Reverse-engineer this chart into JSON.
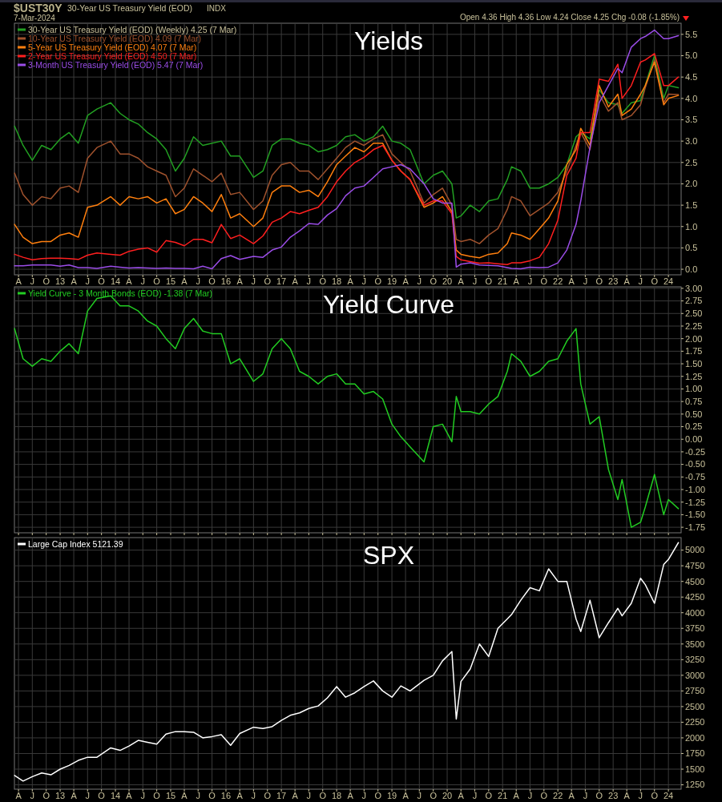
{
  "chart_data": [
    {
      "type": "line",
      "title": "Yields",
      "legend": "top left",
      "grid": true,
      "annotations": [
        "$UST30Y",
        "30-Year US Treasury Yield (EOD)",
        "INDX",
        "7-Mar-2024",
        "Open 4.36  High 4.36  Low 4.24  Close 4.25  Chg -0.08 (-1.85%)"
      ],
      "x": [
        "2012-03-06",
        "2012-05",
        "2012-07",
        "2012-09",
        "2012-11",
        "2013-01",
        "2013-03",
        "2013-05",
        "2013-07",
        "2013-09",
        "2013-12",
        "2014-02",
        "2014-04",
        "2014-06",
        "2014-08",
        "2014-10",
        "2014-12",
        "2015-02",
        "2015-04",
        "2015-06",
        "2015-08",
        "2015-10",
        "2015-12",
        "2016-02",
        "2016-04",
        "2016-07",
        "2016-09",
        "2016-11",
        "2017-01",
        "2017-03",
        "2017-05",
        "2017-07",
        "2017-09",
        "2017-11",
        "2018-01",
        "2018-03",
        "2018-05",
        "2018-07",
        "2018-09",
        "2018-11",
        "2019-01",
        "2019-03",
        "2019-05",
        "2019-08",
        "2019-10",
        "2019-12",
        "2020-02",
        "2020-03",
        "2020-04",
        "2020-06",
        "2020-08",
        "2020-10",
        "2020-12",
        "2021-02",
        "2021-03",
        "2021-05",
        "2021-07",
        "2021-09",
        "2021-11",
        "2022-01",
        "2022-03",
        "2022-05",
        "2022-06",
        "2022-08",
        "2022-10",
        "2022-12",
        "2023-02",
        "2023-03",
        "2023-05",
        "2023-07",
        "2023-08",
        "2023-10",
        "2023-12",
        "2024-01",
        "2024-03-07"
      ],
      "xlim": [
        "2012-03-05",
        "2024-03-25"
      ],
      "xticks": [
        {
          "value": "2012-04",
          "label": "A"
        },
        {
          "value": "2012-07",
          "label": "J"
        },
        {
          "value": "2012-10",
          "label": "O"
        },
        {
          "value": "2013-01",
          "label": "13"
        },
        {
          "value": "2013-04",
          "label": "A"
        },
        {
          "value": "2013-07",
          "label": "J"
        },
        {
          "value": "2013-10",
          "label": "O"
        },
        {
          "value": "2014-01",
          "label": "14"
        },
        {
          "value": "2014-04",
          "label": "A"
        },
        {
          "value": "2014-07",
          "label": "J"
        },
        {
          "value": "2014-10",
          "label": "O"
        },
        {
          "value": "2015-01",
          "label": "15"
        },
        {
          "value": "2015-04",
          "label": "A"
        },
        {
          "value": "2015-07",
          "label": "J"
        },
        {
          "value": "2015-10",
          "label": "O"
        },
        {
          "value": "2016-01",
          "label": "16"
        },
        {
          "value": "2016-04",
          "label": "A"
        },
        {
          "value": "2016-07",
          "label": "J"
        },
        {
          "value": "2016-10",
          "label": "O"
        },
        {
          "value": "2017-01",
          "label": "17"
        },
        {
          "value": "2017-04",
          "label": "A"
        },
        {
          "value": "2017-07",
          "label": "J"
        },
        {
          "value": "2017-10",
          "label": "O"
        },
        {
          "value": "2018-01",
          "label": "18"
        },
        {
          "value": "2018-04",
          "label": "A"
        },
        {
          "value": "2018-07",
          "label": "J"
        },
        {
          "value": "2018-10",
          "label": "O"
        },
        {
          "value": "2019-01",
          "label": "19"
        },
        {
          "value": "2019-04",
          "label": "A"
        },
        {
          "value": "2019-07",
          "label": "J"
        },
        {
          "value": "2019-10",
          "label": "O"
        },
        {
          "value": "2020-01",
          "label": "20"
        },
        {
          "value": "2020-04",
          "label": "A"
        },
        {
          "value": "2020-07",
          "label": "J"
        },
        {
          "value": "2020-10",
          "label": "O"
        },
        {
          "value": "2021-01",
          "label": "21"
        },
        {
          "value": "2021-04",
          "label": "A"
        },
        {
          "value": "2021-07",
          "label": "J"
        },
        {
          "value": "2021-10",
          "label": "O"
        },
        {
          "value": "2022-01",
          "label": "22"
        },
        {
          "value": "2022-04",
          "label": "A"
        },
        {
          "value": "2022-07",
          "label": "J"
        },
        {
          "value": "2022-10",
          "label": "O"
        },
        {
          "value": "2023-01",
          "label": "23"
        },
        {
          "value": "2023-04",
          "label": "A"
        },
        {
          "value": "2023-07",
          "label": "J"
        },
        {
          "value": "2023-10",
          "label": "O"
        },
        {
          "value": "2024-01",
          "label": "24"
        }
      ],
      "ylim": [
        -0.13,
        5.76
      ],
      "yticks": [
        {
          "value": 0,
          "label": "0.0"
        },
        0.5,
        {
          "value": 1,
          "label": "1.0"
        },
        1.5,
        {
          "value": 2,
          "label": "2.0"
        },
        2.5,
        {
          "value": 3,
          "label": "3.0"
        },
        3.5,
        {
          "value": 4,
          "label": "4.0"
        },
        4.5,
        {
          "value": 5,
          "label": "5.0"
        },
        5.5
      ],
      "series": [
        {
          "name": "30-Year US Treasury Yield (EOD) (Weekly) 4.25 (7 Mar)",
          "color": "#22a022",
          "values": [
            3.35,
            2.9,
            2.55,
            2.9,
            2.8,
            3.05,
            3.2,
            2.95,
            3.6,
            3.75,
            3.9,
            3.65,
            3.5,
            3.4,
            3.2,
            3.05,
            2.8,
            2.3,
            2.6,
            3.1,
            2.9,
            2.95,
            3.0,
            2.65,
            2.65,
            2.15,
            2.3,
            2.9,
            3.05,
            3.05,
            2.95,
            2.9,
            2.75,
            2.8,
            2.9,
            3.1,
            3.15,
            3.0,
            3.1,
            3.35,
            3.0,
            2.95,
            2.8,
            2.0,
            2.2,
            2.3,
            2.0,
            1.2,
            1.25,
            1.5,
            1.35,
            1.6,
            1.65,
            2.1,
            2.4,
            2.3,
            1.9,
            1.9,
            2.0,
            2.15,
            2.45,
            3.1,
            3.2,
            3.05,
            4.2,
            3.9,
            3.85,
            3.65,
            3.9,
            3.95,
            4.3,
            5.0,
            4.0,
            4.3,
            4.25
          ]
        },
        {
          "name": "10-Year US Treasury Yield (EOD) 4.09 (7 Mar)",
          "color": "#a0522d",
          "values": [
            2.25,
            1.75,
            1.5,
            1.7,
            1.65,
            1.9,
            1.95,
            1.8,
            2.6,
            2.85,
            3.0,
            2.7,
            2.7,
            2.6,
            2.4,
            2.3,
            2.2,
            1.7,
            1.9,
            2.35,
            2.2,
            2.05,
            2.25,
            1.75,
            1.8,
            1.4,
            1.6,
            2.2,
            2.45,
            2.5,
            2.3,
            2.3,
            2.1,
            2.35,
            2.6,
            2.85,
            3.0,
            2.9,
            3.05,
            3.15,
            2.7,
            2.5,
            2.3,
            1.55,
            1.75,
            1.9,
            1.5,
            0.7,
            0.65,
            0.7,
            0.6,
            0.8,
            0.95,
            1.4,
            1.7,
            1.6,
            1.25,
            1.4,
            1.55,
            1.8,
            2.3,
            2.9,
            3.2,
            2.8,
            4.1,
            3.7,
            3.9,
            3.5,
            3.6,
            3.85,
            4.25,
            4.9,
            3.9,
            4.1,
            4.09
          ]
        },
        {
          "name": "5-Year US Treasury Yield (EOD) 4.07 (7 Mar)",
          "color": "#ff7f0e",
          "values": [
            1.05,
            0.75,
            0.6,
            0.65,
            0.65,
            0.8,
            0.85,
            0.75,
            1.45,
            1.5,
            1.7,
            1.5,
            1.7,
            1.65,
            1.7,
            1.55,
            1.65,
            1.3,
            1.4,
            1.7,
            1.55,
            1.35,
            1.75,
            1.2,
            1.3,
            1.0,
            1.2,
            1.8,
            1.95,
            1.95,
            1.8,
            1.85,
            1.7,
            2.05,
            2.45,
            2.65,
            2.85,
            2.75,
            2.95,
            2.95,
            2.55,
            2.3,
            2.1,
            1.45,
            1.55,
            1.7,
            1.35,
            0.45,
            0.35,
            0.3,
            0.27,
            0.35,
            0.38,
            0.6,
            0.85,
            0.8,
            0.7,
            0.95,
            1.2,
            1.6,
            2.45,
            2.8,
            3.3,
            2.9,
            4.3,
            3.8,
            4.1,
            3.6,
            3.75,
            4.1,
            4.3,
            4.85,
            3.85,
            4.0,
            4.07
          ]
        },
        {
          "name": "2-Year US Treasury Yield (EOD) 4.50 (7 Mar)",
          "color": "#ff1f1f",
          "values": [
            0.35,
            0.28,
            0.22,
            0.25,
            0.26,
            0.26,
            0.25,
            0.23,
            0.33,
            0.38,
            0.35,
            0.33,
            0.42,
            0.47,
            0.5,
            0.4,
            0.67,
            0.63,
            0.55,
            0.7,
            0.7,
            0.62,
            1.05,
            0.72,
            0.8,
            0.6,
            0.78,
            1.1,
            1.2,
            1.35,
            1.3,
            1.38,
            1.45,
            1.7,
            2.05,
            2.3,
            2.5,
            2.62,
            2.8,
            2.9,
            2.55,
            2.3,
            2.1,
            1.5,
            1.6,
            1.6,
            1.3,
            0.3,
            0.22,
            0.18,
            0.14,
            0.15,
            0.13,
            0.11,
            0.15,
            0.15,
            0.2,
            0.28,
            0.6,
            1.15,
            2.2,
            2.6,
            3.2,
            3.2,
            4.45,
            4.4,
            4.8,
            4.0,
            4.3,
            4.85,
            4.9,
            5.05,
            4.3,
            4.3,
            4.5
          ]
        },
        {
          "name": "3-Month US Treasury Yield (EOD) 5.47 (7 Mar)",
          "color": "#9b4de8",
          "values": [
            0.08,
            0.08,
            0.1,
            0.1,
            0.1,
            0.07,
            0.1,
            0.04,
            0.04,
            0.02,
            0.07,
            0.05,
            0.03,
            0.04,
            0.03,
            0.02,
            0.03,
            0.02,
            0.02,
            0.01,
            0.07,
            0.01,
            0.25,
            0.32,
            0.23,
            0.3,
            0.28,
            0.45,
            0.52,
            0.75,
            0.9,
            1.07,
            1.05,
            1.27,
            1.42,
            1.72,
            1.9,
            1.95,
            2.15,
            2.35,
            2.4,
            2.45,
            2.35,
            2.0,
            1.65,
            1.55,
            1.55,
            0.05,
            0.12,
            0.15,
            0.1,
            0.09,
            0.08,
            0.04,
            0.02,
            0.01,
            0.05,
            0.04,
            0.05,
            0.15,
            0.45,
            1.05,
            1.6,
            2.85,
            3.9,
            4.3,
            4.7,
            4.6,
            5.2,
            5.4,
            5.45,
            5.6,
            5.4,
            5.4,
            5.47
          ]
        }
      ]
    },
    {
      "type": "line",
      "title": "Yield Curve",
      "legend": "top left",
      "grid": true,
      "tick_labels": "y",
      "x": [
        "2012-03-06",
        "2012-05",
        "2012-07",
        "2012-09",
        "2012-11",
        "2013-01",
        "2013-03",
        "2013-05",
        "2013-07",
        "2013-09",
        "2013-12",
        "2014-02",
        "2014-04",
        "2014-06",
        "2014-08",
        "2014-10",
        "2014-12",
        "2015-02",
        "2015-04",
        "2015-06",
        "2015-08",
        "2015-10",
        "2015-12",
        "2016-02",
        "2016-04",
        "2016-07",
        "2016-09",
        "2016-11",
        "2017-01",
        "2017-03",
        "2017-05",
        "2017-07",
        "2017-09",
        "2017-11",
        "2018-01",
        "2018-03",
        "2018-05",
        "2018-07",
        "2018-09",
        "2018-11",
        "2019-01",
        "2019-03",
        "2019-05",
        "2019-08",
        "2019-10",
        "2019-12",
        "2020-02",
        "2020-03",
        "2020-04",
        "2020-06",
        "2020-08",
        "2020-10",
        "2020-12",
        "2021-02",
        "2021-03",
        "2021-05",
        "2021-07",
        "2021-09",
        "2021-11",
        "2022-01",
        "2022-03",
        "2022-05",
        "2022-06",
        "2022-08",
        "2022-10",
        "2022-12",
        "2023-02",
        "2023-03",
        "2023-05",
        "2023-07",
        "2023-08",
        "2023-10",
        "2023-12",
        "2024-01",
        "2024-03-07"
      ],
      "xlim": [
        "2012-03-05",
        "2024-03-25"
      ],
      "xticks": [
        {
          "value": "2012-04",
          "label": null
        },
        {
          "value": "2012-07",
          "label": null
        },
        {
          "value": "2012-10",
          "label": null
        },
        {
          "value": "2013-01",
          "label": null
        },
        {
          "value": "2013-04",
          "label": null
        },
        {
          "value": "2013-07",
          "label": null
        },
        {
          "value": "2013-10",
          "label": null
        },
        {
          "value": "2014-01",
          "label": null
        },
        {
          "value": "2014-04",
          "label": null
        },
        {
          "value": "2014-07",
          "label": null
        },
        {
          "value": "2014-10",
          "label": null
        },
        {
          "value": "2015-01",
          "label": null
        },
        {
          "value": "2015-04",
          "label": null
        },
        {
          "value": "2015-07",
          "label": null
        },
        {
          "value": "2015-10",
          "label": null
        },
        {
          "value": "2016-01",
          "label": null
        },
        {
          "value": "2016-04",
          "label": null
        },
        {
          "value": "2016-07",
          "label": null
        },
        {
          "value": "2016-10",
          "label": null
        },
        {
          "value": "2017-01",
          "label": null
        },
        {
          "value": "2017-04",
          "label": null
        },
        {
          "value": "2017-07",
          "label": null
        },
        {
          "value": "2017-10",
          "label": null
        },
        {
          "value": "2018-01",
          "label": null
        },
        {
          "value": "2018-04",
          "label": null
        },
        {
          "value": "2018-07",
          "label": null
        },
        {
          "value": "2018-10",
          "label": null
        },
        {
          "value": "2019-01",
          "label": null
        },
        {
          "value": "2019-04",
          "label": null
        },
        {
          "value": "2019-07",
          "label": null
        },
        {
          "value": "2019-10",
          "label": null
        },
        {
          "value": "2020-01",
          "label": null
        },
        {
          "value": "2020-04",
          "label": null
        },
        {
          "value": "2020-07",
          "label": null
        },
        {
          "value": "2020-10",
          "label": null
        },
        {
          "value": "2021-01",
          "label": null
        },
        {
          "value": "2021-04",
          "label": null
        },
        {
          "value": "2021-07",
          "label": null
        },
        {
          "value": "2021-10",
          "label": null
        },
        {
          "value": "2022-01",
          "label": null
        },
        {
          "value": "2022-04",
          "label": null
        },
        {
          "value": "2022-07",
          "label": null
        },
        {
          "value": "2022-10",
          "label": null
        },
        {
          "value": "2023-01",
          "label": null
        },
        {
          "value": "2023-04",
          "label": null
        },
        {
          "value": "2023-07",
          "label": null
        },
        {
          "value": "2023-10",
          "label": null
        },
        {
          "value": "2024-01",
          "label": null
        }
      ],
      "ylim": [
        -1.86,
        3.03
      ],
      "yticks": [
        {
          "value": 3,
          "label": "3.00"
        },
        2.75,
        {
          "value": 2.5,
          "label": "2.50"
        },
        2.25,
        {
          "value": 2,
          "label": "2.00"
        },
        1.75,
        {
          "value": 1.5,
          "label": "1.50"
        },
        1.25,
        {
          "value": 1,
          "label": "1.00"
        },
        0.75,
        {
          "value": 0.5,
          "label": "0.50"
        },
        0.25,
        {
          "value": 0,
          "label": "0.00"
        },
        -0.25,
        {
          "value": -0.5,
          "label": "-0.50"
        },
        -0.75,
        {
          "value": -1,
          "label": "-1.00"
        },
        -1.25,
        {
          "value": -1.5,
          "label": "-1.50"
        },
        -1.75
      ],
      "series": [
        {
          "name": "Yield Curve - 3 Month Bonds (EOD) -1.38 (7 Mar)",
          "color": "#22cc22",
          "values": [
            2.2,
            1.6,
            1.45,
            1.6,
            1.55,
            1.75,
            1.9,
            1.7,
            2.55,
            2.8,
            2.85,
            2.65,
            2.65,
            2.55,
            2.35,
            2.25,
            2.0,
            1.8,
            2.2,
            2.4,
            2.15,
            2.1,
            2.1,
            1.5,
            1.6,
            1.15,
            1.3,
            1.8,
            2.0,
            1.8,
            1.35,
            1.25,
            1.1,
            1.25,
            1.3,
            1.1,
            1.1,
            0.9,
            0.95,
            0.8,
            0.3,
            0.05,
            -0.15,
            -0.45,
            0.25,
            0.3,
            -0.05,
            0.85,
            0.55,
            0.55,
            0.5,
            0.7,
            0.85,
            1.35,
            1.7,
            1.55,
            1.25,
            1.35,
            1.55,
            1.6,
            1.95,
            2.2,
            1.1,
            0.3,
            0.45,
            -0.6,
            -1.2,
            -0.8,
            -1.75,
            -1.65,
            -1.35,
            -0.7,
            -1.5,
            -1.2,
            -1.38
          ]
        }
      ]
    },
    {
      "type": "line",
      "title": "SPX",
      "legend": "top left",
      "grid": true,
      "x": [
        "2012-03-06",
        "2012-05",
        "2012-07",
        "2012-09",
        "2012-11",
        "2013-01",
        "2013-03",
        "2013-05",
        "2013-07",
        "2013-09",
        "2013-12",
        "2014-02",
        "2014-04",
        "2014-06",
        "2014-08",
        "2014-10",
        "2014-12",
        "2015-02",
        "2015-04",
        "2015-06",
        "2015-08",
        "2015-10",
        "2015-12",
        "2016-02",
        "2016-04",
        "2016-07",
        "2016-09",
        "2016-11",
        "2017-01",
        "2017-03",
        "2017-05",
        "2017-07",
        "2017-09",
        "2017-11",
        "2018-01",
        "2018-03",
        "2018-05",
        "2018-07",
        "2018-09",
        "2018-11",
        "2019-01",
        "2019-03",
        "2019-05",
        "2019-08",
        "2019-10",
        "2019-12",
        "2020-02",
        "2020-03",
        "2020-04",
        "2020-06",
        "2020-08",
        "2020-10",
        "2020-12",
        "2021-02",
        "2021-03",
        "2021-05",
        "2021-07",
        "2021-09",
        "2021-11",
        "2022-01",
        "2022-03",
        "2022-05",
        "2022-06",
        "2022-08",
        "2022-10",
        "2022-12",
        "2023-02",
        "2023-03",
        "2023-05",
        "2023-07",
        "2023-08",
        "2023-10",
        "2023-12",
        "2024-01",
        "2024-03-07"
      ],
      "xlim": [
        "2012-03-05",
        "2024-03-25"
      ],
      "xticks": [
        {
          "value": "2012-04",
          "label": "A"
        },
        {
          "value": "2012-07",
          "label": "J"
        },
        {
          "value": "2012-10",
          "label": "O"
        },
        {
          "value": "2013-01",
          "label": "13"
        },
        {
          "value": "2013-04",
          "label": "A"
        },
        {
          "value": "2013-07",
          "label": "J"
        },
        {
          "value": "2013-10",
          "label": "O"
        },
        {
          "value": "2014-01",
          "label": "14"
        },
        {
          "value": "2014-04",
          "label": "A"
        },
        {
          "value": "2014-07",
          "label": "J"
        },
        {
          "value": "2014-10",
          "label": "O"
        },
        {
          "value": "2015-01",
          "label": "15"
        },
        {
          "value": "2015-04",
          "label": "A"
        },
        {
          "value": "2015-07",
          "label": "J"
        },
        {
          "value": "2015-10",
          "label": "O"
        },
        {
          "value": "2016-01",
          "label": "16"
        },
        {
          "value": "2016-04",
          "label": "A"
        },
        {
          "value": "2016-07",
          "label": "J"
        },
        {
          "value": "2016-10",
          "label": "O"
        },
        {
          "value": "2017-01",
          "label": "17"
        },
        {
          "value": "2017-04",
          "label": "A"
        },
        {
          "value": "2017-07",
          "label": "J"
        },
        {
          "value": "2017-10",
          "label": "O"
        },
        {
          "value": "2018-01",
          "label": "18"
        },
        {
          "value": "2018-04",
          "label": "A"
        },
        {
          "value": "2018-07",
          "label": "J"
        },
        {
          "value": "2018-10",
          "label": "O"
        },
        {
          "value": "2019-01",
          "label": "19"
        },
        {
          "value": "2019-04",
          "label": "A"
        },
        {
          "value": "2019-07",
          "label": "J"
        },
        {
          "value": "2019-10",
          "label": "O"
        },
        {
          "value": "2020-01",
          "label": "20"
        },
        {
          "value": "2020-04",
          "label": "A"
        },
        {
          "value": "2020-07",
          "label": "J"
        },
        {
          "value": "2020-10",
          "label": "O"
        },
        {
          "value": "2021-01",
          "label": "21"
        },
        {
          "value": "2021-04",
          "label": "A"
        },
        {
          "value": "2021-07",
          "label": "J"
        },
        {
          "value": "2021-10",
          "label": "O"
        },
        {
          "value": "2022-01",
          "label": "22"
        },
        {
          "value": "2022-04",
          "label": "A"
        },
        {
          "value": "2022-07",
          "label": "J"
        },
        {
          "value": "2022-10",
          "label": "O"
        },
        {
          "value": "2023-01",
          "label": "23"
        },
        {
          "value": "2023-04",
          "label": "A"
        },
        {
          "value": "2023-07",
          "label": "J"
        },
        {
          "value": "2023-10",
          "label": "O"
        },
        {
          "value": "2024-01",
          "label": "24"
        }
      ],
      "ylim": [
        1180,
        5200
      ],
      "yticks": [
        1250,
        1500,
        1750,
        2000,
        2250,
        2500,
        2750,
        3000,
        3250,
        3500,
        3750,
        4000,
        4250,
        4500,
        4750,
        5000
      ],
      "series": [
        {
          "name": "Large Cap Index 5121.39",
          "color": "#ffffff",
          "values": [
            1400,
            1310,
            1380,
            1440,
            1410,
            1500,
            1560,
            1640,
            1690,
            1690,
            1840,
            1800,
            1870,
            1960,
            1930,
            1900,
            2060,
            2100,
            2100,
            2090,
            2000,
            2020,
            2050,
            1880,
            2070,
            2170,
            2150,
            2180,
            2280,
            2360,
            2400,
            2470,
            2510,
            2640,
            2820,
            2650,
            2720,
            2820,
            2910,
            2750,
            2650,
            2830,
            2750,
            2920,
            3000,
            3230,
            3380,
            2300,
            2900,
            3100,
            3500,
            3300,
            3750,
            3900,
            3970,
            4200,
            4400,
            4350,
            4700,
            4500,
            4500,
            3900,
            3700,
            4200,
            3600,
            3840,
            4070,
            3950,
            4150,
            4550,
            4450,
            4150,
            4770,
            4850,
            5120
          ]
        }
      ]
    }
  ]
}
